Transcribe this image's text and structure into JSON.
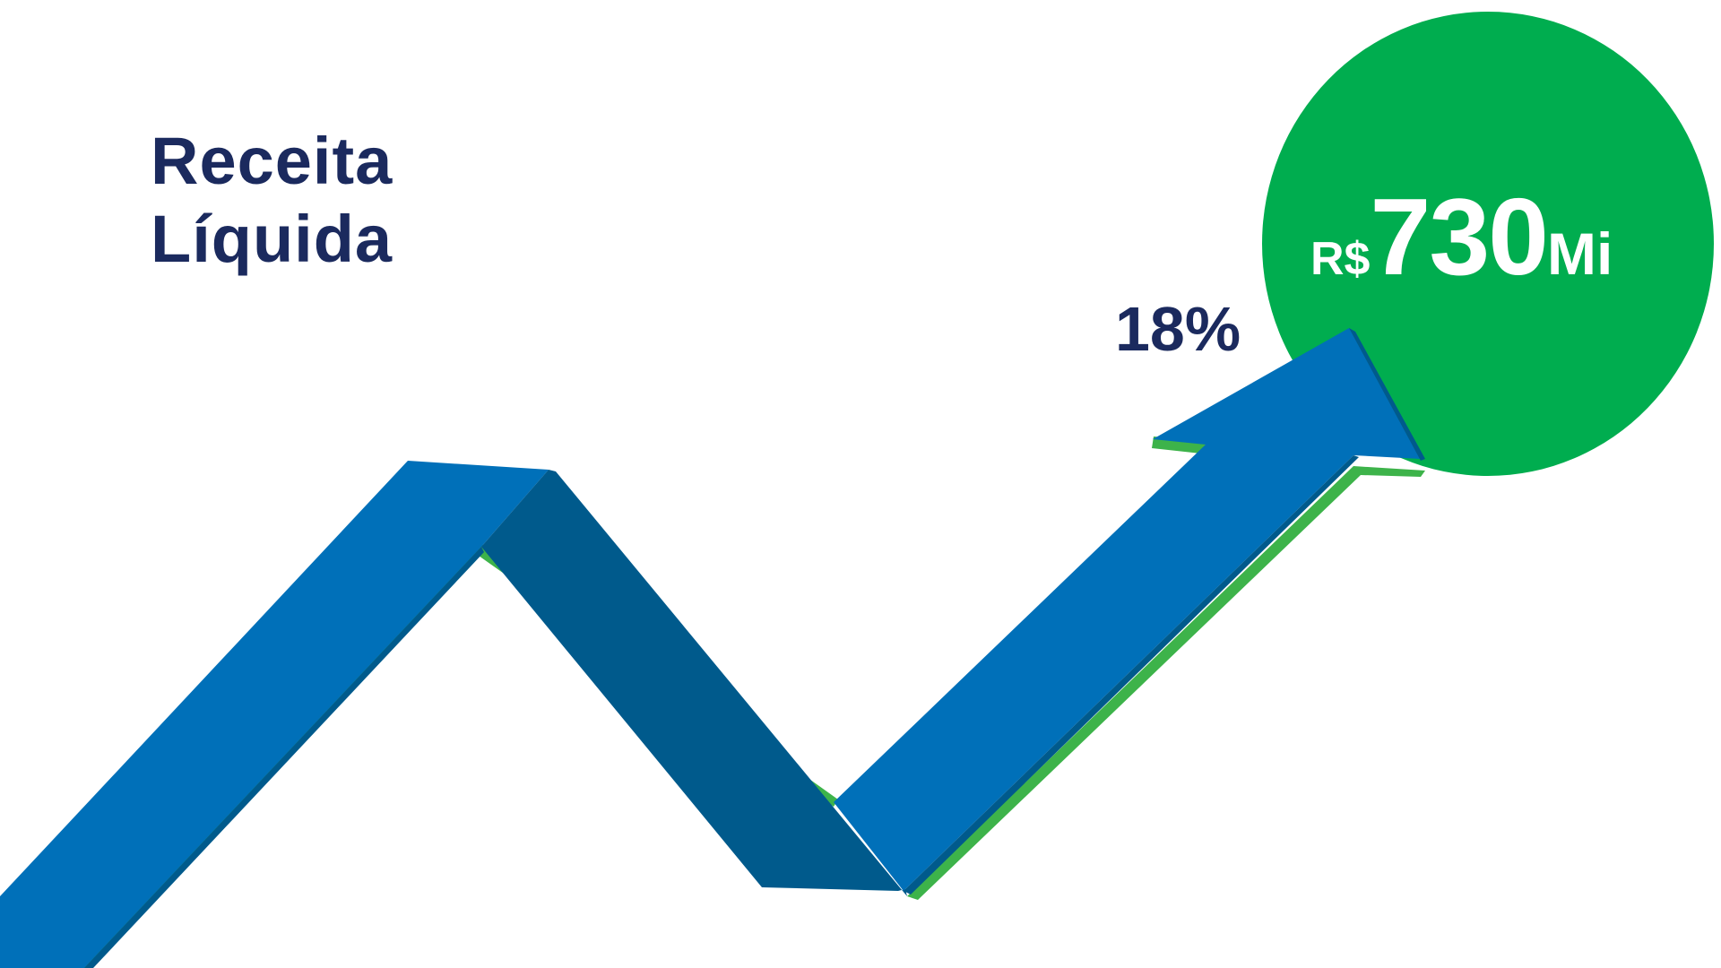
{
  "title": {
    "line1": "Receita",
    "line2": "Líquida"
  },
  "growth_label": "18%",
  "value": {
    "currency": "R$",
    "number": "730",
    "unit": "Mi"
  },
  "colors": {
    "title_text": "#1b2a5e",
    "circle_green": "#00ad4f",
    "arrow_blue": "#0070b9",
    "arrow_dark_blue": "#005a8c",
    "arrow_edge_green": "#3db34a",
    "value_text": "#ffffff"
  },
  "graphic": {
    "arrow_icon": "zigzag-growth-arrow",
    "circle_icon": "value-circle"
  }
}
